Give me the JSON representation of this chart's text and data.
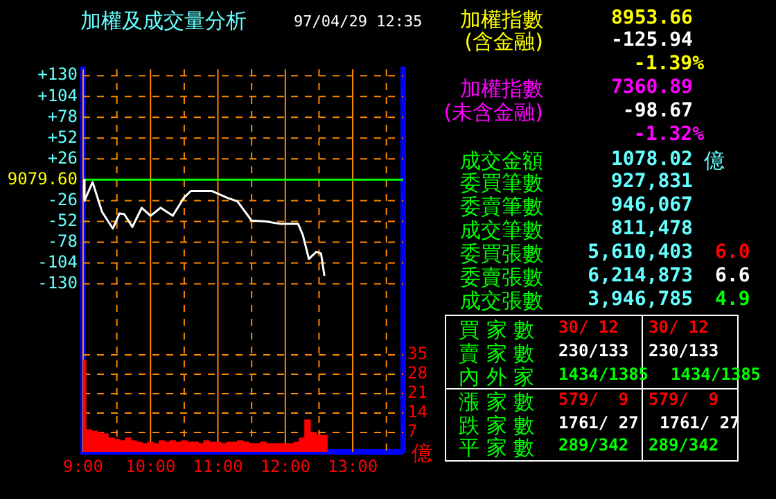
{
  "chart_data": [
    {
      "type": "line",
      "title": "加權及成交量分析",
      "subtitle": "97/04/29 12:35",
      "y2label": "億",
      "xlim": [
        9,
        13.75
      ],
      "xticks": [
        {
          "value": 9,
          "label": "9:00"
        },
        {
          "value": 9.5,
          "label": null
        },
        {
          "value": 10,
          "label": "10:00"
        },
        {
          "value": 10.5,
          "label": null
        },
        {
          "value": 11,
          "label": "11:00"
        },
        {
          "value": 11.5,
          "label": null
        },
        {
          "value": 12,
          "label": "12:00"
        },
        {
          "value": 12.5,
          "label": null
        },
        {
          "value": 13,
          "label": "13:00"
        },
        {
          "value": 13.5,
          "label": null
        }
      ],
      "ylim": [
        -340,
        138
      ],
      "yticks": [
        {
          "value": 130,
          "label": "+130"
        },
        {
          "value": 104,
          "label": "+104"
        },
        {
          "value": 78,
          "label": "+78"
        },
        {
          "value": 52,
          "label": "+52"
        },
        {
          "value": 26,
          "label": "+26"
        },
        {
          "value": 0,
          "label": null
        },
        -26,
        -52,
        -78,
        -104,
        -130
      ],
      "y2lim": [
        0,
        138
      ],
      "y2ticks": [
        7,
        14,
        21,
        28,
        35
      ],
      "grid": true,
      "marker": "none",
      "ref_lines": [
        {
          "axis": "y",
          "value": 0,
          "color": "#00ff00"
        }
      ],
      "annotations": [
        "9079.60"
      ],
      "series": [
        {
          "type": "line",
          "color": "#ffffff",
          "x": [
            9,
            9.02,
            9.14,
            9.28,
            9.44,
            9.54,
            9.61,
            9.73,
            9.87,
            10.0,
            10.15,
            10.33,
            10.49,
            10.6,
            10.91,
            11.15,
            11.29,
            11.5,
            11.71,
            11.92,
            12.19,
            12.26,
            12.35,
            12.46,
            12.53,
            12.58
          ],
          "values": [
            0,
            -26,
            -3,
            -40,
            -61,
            -42,
            -43,
            -59,
            -35,
            -45,
            -35,
            -45,
            -23,
            -14,
            -14,
            -23,
            -27,
            -51,
            -52,
            -55,
            -55,
            -69,
            -99,
            -90,
            -92,
            -120
          ]
        },
        {
          "type": "bar",
          "axis": "y2",
          "color": "#ff0000",
          "x": [
            9.0,
            9.08,
            9.17,
            9.25,
            9.33,
            9.42,
            9.5,
            9.58,
            9.67,
            9.75,
            9.83,
            9.92,
            10.0,
            10.08,
            10.17,
            10.25,
            10.33,
            10.42,
            10.5,
            10.58,
            10.67,
            10.75,
            10.83,
            10.92,
            11.0,
            11.08,
            11.17,
            11.25,
            11.33,
            11.42,
            11.5,
            11.58,
            11.67,
            11.75,
            11.83,
            11.92,
            12.0,
            12.08,
            12.17,
            12.25,
            12.33,
            12.42,
            12.5,
            12.58
          ],
          "values": [
            33,
            8,
            7.5,
            7,
            6.5,
            5,
            4.5,
            4,
            5,
            4,
            3.5,
            3,
            3.5,
            3,
            4,
            3.5,
            4,
            3.5,
            4,
            3.5,
            3.5,
            3,
            4,
            3.5,
            3.5,
            3,
            3.5,
            3.5,
            4,
            3.5,
            3,
            3,
            3.5,
            3,
            3,
            3,
            3,
            3,
            3.5,
            5,
            11.5,
            7,
            6,
            6
          ]
        }
      ]
    },
    {
      "type": "other",
      "annotations": [
        "加權指數",
        "8953.66",
        "(含金融)",
        "-125.94",
        "-1.39%",
        "加權指數",
        "7360.89",
        "(未含金融)",
        "-98.67",
        "-1.32%",
        "成交金額",
        "1078.02",
        "億",
        "委買筆數",
        "927,831",
        "委賣筆數",
        "946,067",
        "成交筆數",
        "811,478",
        "委買張數",
        "5,610,403",
        "6.0",
        "委賣張數",
        "6,214,873",
        "6.6",
        "成交張數",
        "3,946,785",
        "4.9",
        "買 家 數",
        "30/ 12",
        "30/ 12",
        "賣 家 數",
        "230/133",
        "230/133",
        "內 外 家",
        "1434/1385",
        "1434/1385",
        "漲 家 數",
        "579/  9",
        "579/  9",
        "跌 家 數",
        "1761/ 27",
        "1761/ 27",
        "平 家 數",
        "289/342",
        "289/342"
      ]
    }
  ]
}
